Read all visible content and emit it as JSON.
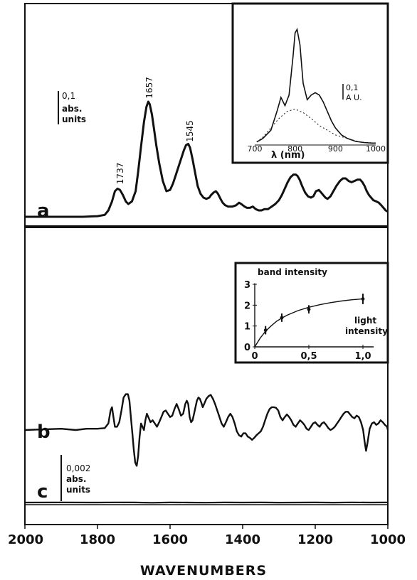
{
  "chart_data": [
    {
      "panel": "a",
      "type": "line",
      "panel_label": "a",
      "scale_bar": {
        "value": "0,1",
        "unit_line1": "abs.",
        "unit_line2": "units"
      },
      "peak_labels": [
        {
          "x": 1737,
          "text": "1737"
        },
        {
          "x": 1657,
          "text": "1657"
        },
        {
          "x": 1545,
          "text": "1545"
        }
      ],
      "xlim": [
        2000,
        1000
      ],
      "ylim": [
        0,
        1
      ],
      "series": [
        {
          "x": [
            2000,
            1840,
            1800,
            1780,
            1770,
            1760,
            1752,
            1745,
            1738,
            1730,
            1722,
            1715,
            1705,
            1695,
            1688,
            1680,
            1672,
            1665,
            1660,
            1656,
            1650,
            1645,
            1638,
            1630,
            1620,
            1610,
            1600,
            1592,
            1585,
            1578,
            1570,
            1562,
            1556,
            1550,
            1545,
            1538,
            1530,
            1524,
            1516,
            1508,
            1500,
            1492,
            1487,
            1480,
            1474,
            1468,
            1461,
            1455,
            1448,
            1440,
            1428,
            1418,
            1410,
            1404,
            1395,
            1388,
            1380,
            1372,
            1364,
            1356,
            1348,
            1340,
            1330,
            1320,
            1310,
            1300,
            1292,
            1284,
            1276,
            1268,
            1260,
            1254,
            1249,
            1243,
            1236,
            1228,
            1220,
            1212,
            1205,
            1198,
            1190,
            1184,
            1178,
            1172,
            1166,
            1158,
            1150,
            1142,
            1132,
            1124,
            1116,
            1108,
            1100,
            1092,
            1084,
            1076,
            1070,
            1064,
            1058,
            1052,
            1046,
            1040,
            1032,
            1025,
            1018,
            1012,
            1006,
            1000
          ],
          "y": [
            0.0,
            0.0,
            0.005,
            0.015,
            0.05,
            0.12,
            0.2,
            0.22,
            0.21,
            0.17,
            0.12,
            0.1,
            0.12,
            0.2,
            0.35,
            0.55,
            0.74,
            0.86,
            0.9,
            0.88,
            0.8,
            0.7,
            0.56,
            0.42,
            0.28,
            0.2,
            0.21,
            0.26,
            0.32,
            0.38,
            0.45,
            0.52,
            0.56,
            0.57,
            0.54,
            0.45,
            0.33,
            0.24,
            0.18,
            0.15,
            0.14,
            0.15,
            0.17,
            0.19,
            0.2,
            0.18,
            0.14,
            0.11,
            0.09,
            0.08,
            0.08,
            0.09,
            0.11,
            0.1,
            0.08,
            0.07,
            0.07,
            0.08,
            0.06,
            0.05,
            0.05,
            0.06,
            0.06,
            0.08,
            0.1,
            0.13,
            0.17,
            0.22,
            0.27,
            0.31,
            0.33,
            0.33,
            0.32,
            0.29,
            0.24,
            0.19,
            0.16,
            0.15,
            0.16,
            0.2,
            0.21,
            0.19,
            0.17,
            0.15,
            0.14,
            0.16,
            0.2,
            0.24,
            0.28,
            0.3,
            0.3,
            0.28,
            0.27,
            0.28,
            0.29,
            0.29,
            0.27,
            0.24,
            0.2,
            0.17,
            0.15,
            0.13,
            0.12,
            0.11,
            0.09,
            0.07,
            0.05,
            0.04
          ]
        }
      ]
    },
    {
      "panel": "a-inset",
      "type": "line",
      "xlabel": "λ (nm)",
      "xticks": [
        "700",
        "800",
        "900",
        "1000"
      ],
      "scale_bar": {
        "value": "0,1",
        "unit_line1": "A U."
      },
      "xlim": [
        700,
        1000
      ],
      "ylim": [
        0,
        1
      ],
      "series": [
        {
          "x": [
            705,
            720,
            740,
            755,
            765,
            775,
            785,
            795,
            800,
            805,
            812,
            820,
            830,
            840,
            850,
            860,
            870,
            880,
            890,
            900,
            915,
            930,
            950,
            970,
            990,
            1000
          ],
          "y": [
            0.02,
            0.05,
            0.12,
            0.28,
            0.4,
            0.33,
            0.42,
            0.75,
            0.95,
            0.98,
            0.85,
            0.52,
            0.38,
            0.42,
            0.44,
            0.42,
            0.36,
            0.28,
            0.2,
            0.14,
            0.08,
            0.05,
            0.025,
            0.015,
            0.01,
            0.01
          ]
        },
        {
          "dashed": true,
          "x": [
            705,
            720,
            740,
            760,
            780,
            800,
            820,
            840,
            860,
            880,
            900,
            930,
            960,
            1000
          ],
          "y": [
            0.02,
            0.06,
            0.14,
            0.22,
            0.28,
            0.3,
            0.27,
            0.22,
            0.16,
            0.12,
            0.08,
            0.05,
            0.02,
            0.01
          ]
        }
      ]
    },
    {
      "panel": "b",
      "type": "line",
      "panel_label": "b",
      "xlim": [
        2000,
        1000
      ],
      "ylim": [
        -0.6,
        0.6
      ],
      "series": [
        {
          "x": [
            2000,
            1950,
            1900,
            1860,
            1830,
            1800,
            1780,
            1770,
            1764,
            1760,
            1756,
            1752,
            1746,
            1740,
            1734,
            1728,
            1722,
            1716,
            1712,
            1708,
            1704,
            1700,
            1696,
            1692,
            1688,
            1684,
            1680,
            1676,
            1672,
            1668,
            1664,
            1660,
            1654,
            1648,
            1642,
            1636,
            1630,
            1624,
            1618,
            1612,
            1606,
            1600,
            1594,
            1588,
            1582,
            1576,
            1570,
            1564,
            1558,
            1554,
            1550,
            1546,
            1542,
            1538,
            1534,
            1530,
            1526,
            1522,
            1518,
            1514,
            1510,
            1506,
            1500,
            1494,
            1488,
            1482,
            1476,
            1470,
            1464,
            1458,
            1452,
            1446,
            1440,
            1434,
            1428,
            1422,
            1416,
            1410,
            1404,
            1398,
            1392,
            1386,
            1380,
            1374,
            1368,
            1362,
            1356,
            1350,
            1344,
            1338,
            1332,
            1326,
            1320,
            1314,
            1308,
            1302,
            1296,
            1290,
            1284,
            1278,
            1272,
            1266,
            1260,
            1254,
            1248,
            1242,
            1236,
            1230,
            1224,
            1218,
            1212,
            1206,
            1200,
            1194,
            1188,
            1182,
            1176,
            1170,
            1164,
            1158,
            1152,
            1146,
            1140,
            1134,
            1128,
            1122,
            1116,
            1110,
            1104,
            1098,
            1092,
            1086,
            1080,
            1074,
            1068,
            1064,
            1060,
            1056,
            1050,
            1044,
            1038,
            1032,
            1026,
            1020,
            1014,
            1008,
            1002,
            1000
          ],
          "y": [
            0,
            0.01,
            0.02,
            0,
            0.02,
            0.02,
            0.03,
            0.1,
            0.3,
            0.35,
            0.2,
            0.05,
            0.05,
            0.12,
            0.3,
            0.5,
            0.55,
            0.55,
            0.45,
            0.2,
            -0.05,
            -0.3,
            -0.5,
            -0.55,
            -0.4,
            -0.1,
            0.1,
            0.05,
            0.0,
            0.15,
            0.25,
            0.2,
            0.12,
            0.15,
            0.1,
            0.05,
            0.12,
            0.2,
            0.28,
            0.3,
            0.25,
            0.2,
            0.22,
            0.32,
            0.4,
            0.32,
            0.22,
            0.25,
            0.4,
            0.45,
            0.4,
            0.2,
            0.12,
            0.15,
            0.25,
            0.35,
            0.45,
            0.5,
            0.48,
            0.42,
            0.35,
            0.4,
            0.48,
            0.52,
            0.54,
            0.48,
            0.4,
            0.3,
            0.2,
            0.1,
            0.05,
            0.12,
            0.2,
            0.25,
            0.2,
            0.1,
            -0.02,
            -0.08,
            -0.1,
            -0.05,
            -0.05,
            -0.1,
            -0.12,
            -0.15,
            -0.12,
            -0.08,
            -0.05,
            -0.02,
            0.05,
            0.15,
            0.25,
            0.32,
            0.35,
            0.35,
            0.34,
            0.3,
            0.2,
            0.15,
            0.2,
            0.24,
            0.2,
            0.15,
            0.08,
            0.05,
            0.1,
            0.15,
            0.12,
            0.08,
            0.02,
            0.0,
            0.05,
            0.1,
            0.12,
            0.08,
            0.05,
            0.1,
            0.12,
            0.08,
            0.03,
            0.0,
            0.02,
            0.05,
            0.1,
            0.15,
            0.2,
            0.25,
            0.28,
            0.28,
            0.24,
            0.2,
            0.18,
            0.22,
            0.2,
            0.12,
            0.0,
            -0.18,
            -0.32,
            -0.2,
            0.02,
            0.1,
            0.12,
            0.08,
            0.1,
            0.15,
            0.12,
            0.08,
            0.05,
            0.0
          ]
        }
      ]
    },
    {
      "panel": "b-inset",
      "type": "scatter",
      "ylabel": "band intensity",
      "xlabel_line1": "light",
      "xlabel_line2": "intensity",
      "xticks": [
        "0",
        "0,5",
        "1,0"
      ],
      "yticks": [
        "0",
        "1",
        "2",
        "3"
      ],
      "xlim": [
        0,
        1
      ],
      "ylim": [
        0,
        3
      ],
      "points": [
        {
          "x": 0.1,
          "y": 0.8,
          "err": 0.2
        },
        {
          "x": 0.25,
          "y": 1.4,
          "err": 0.2
        },
        {
          "x": 0.5,
          "y": 1.8,
          "err": 0.2
        },
        {
          "x": 1.0,
          "y": 2.3,
          "err": 0.25
        }
      ],
      "fit": {
        "x": [
          0,
          0.05,
          0.1,
          0.15,
          0.2,
          0.25,
          0.3,
          0.4,
          0.5,
          0.6,
          0.7,
          0.8,
          0.9,
          1.0
        ],
        "y": [
          0,
          0.42,
          0.75,
          1.0,
          1.22,
          1.38,
          1.52,
          1.74,
          1.9,
          2.02,
          2.12,
          2.2,
          2.26,
          2.3
        ]
      }
    },
    {
      "panel": "c",
      "type": "line",
      "panel_label": "c",
      "scale_bar": {
        "value": "0,002",
        "unit_line1": "abs.",
        "unit_line2": "units"
      },
      "xlim": [
        2000,
        1000
      ],
      "ylim": [
        -1,
        1
      ],
      "series": [
        {
          "x": [
            2000,
            1900,
            1800,
            1750,
            1700,
            1650,
            1600,
            1550,
            1500,
            1450,
            1400,
            1350,
            1300,
            1250,
            1200,
            1150,
            1100,
            1050,
            1000
          ],
          "y": [
            0,
            0.02,
            0.0,
            0.05,
            0.02,
            -0.05,
            0.03,
            0.0,
            -0.04,
            0.02,
            0.0,
            0.03,
            -0.02,
            0.0,
            0.02,
            -0.03,
            0.04,
            0.0,
            0.02
          ]
        }
      ]
    }
  ],
  "x_axis": {
    "label": "WAVENUMBERS",
    "ticks": [
      {
        "value": 2000,
        "text": "2000"
      },
      {
        "value": 1800,
        "text": "1800"
      },
      {
        "value": 1600,
        "text": "1600"
      },
      {
        "value": 1400,
        "text": "1400"
      },
      {
        "value": 1200,
        "text": "1200"
      },
      {
        "value": 1000,
        "text": "1000"
      }
    ]
  }
}
